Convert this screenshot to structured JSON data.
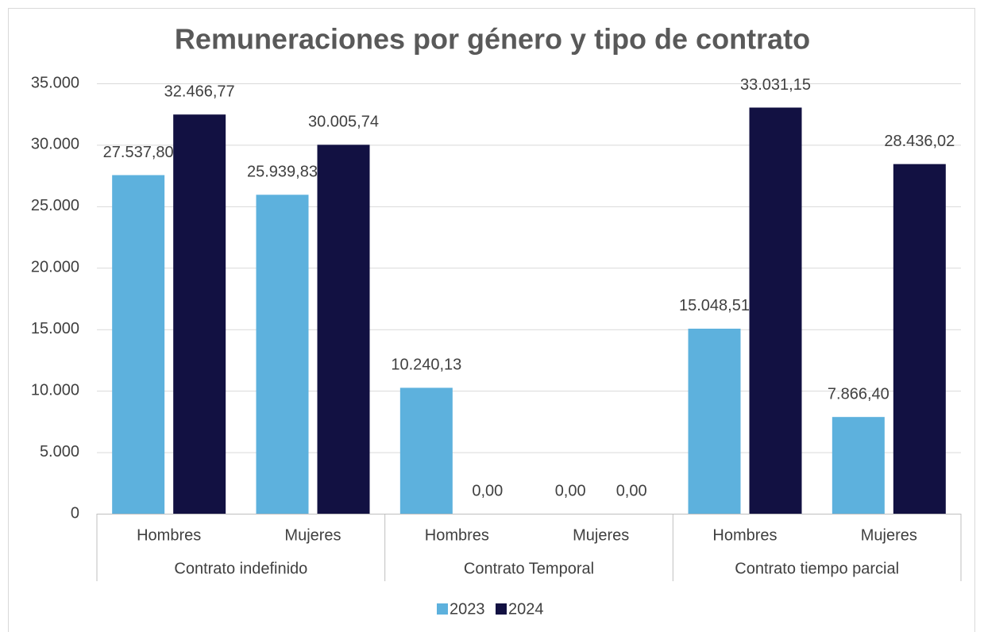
{
  "chart_data": {
    "type": "bar",
    "title": "Remuneraciones por género y tipo de contrato",
    "groups": [
      {
        "name": "Contrato indefinido",
        "categories": [
          "Hombres",
          "Mujeres"
        ]
      },
      {
        "name": "Contrato Temporal",
        "categories": [
          "Hombres",
          "Mujeres"
        ]
      },
      {
        "name": "Contrato tiempo parcial",
        "categories": [
          "Hombres",
          "Mujeres"
        ]
      }
    ],
    "series": [
      {
        "name": "2023",
        "color": "#5db1dd",
        "values": [
          27537.8,
          25939.83,
          10240.13,
          0,
          15048.51,
          7866.4
        ],
        "value_labels": [
          "27.537,80",
          "25.939,83",
          "10.240,13",
          "0,00",
          "15.048,51",
          "7.866,40"
        ]
      },
      {
        "name": "2024",
        "color": "#121142",
        "values": [
          32466.77,
          30005.74,
          0,
          0,
          33031.15,
          28436.02
        ],
        "value_labels": [
          "32.466,77",
          "30.005,74",
          "0,00",
          "0,00",
          "33.031,15",
          "28.436,02"
        ]
      }
    ],
    "ylim": [
      0,
      35000
    ],
    "yticks": [
      0,
      {
        "value": 5000,
        "label": "5.000"
      },
      {
        "value": 10000,
        "label": "10.000"
      },
      {
        "value": 15000,
        "label": "15.000"
      },
      {
        "value": 20000,
        "label": "20.000"
      },
      {
        "value": 25000,
        "label": "25.000"
      },
      {
        "value": 30000,
        "label": "30.000"
      },
      {
        "value": 35000,
        "label": "35.000"
      }
    ],
    "grid": true,
    "legend": "bottom"
  }
}
